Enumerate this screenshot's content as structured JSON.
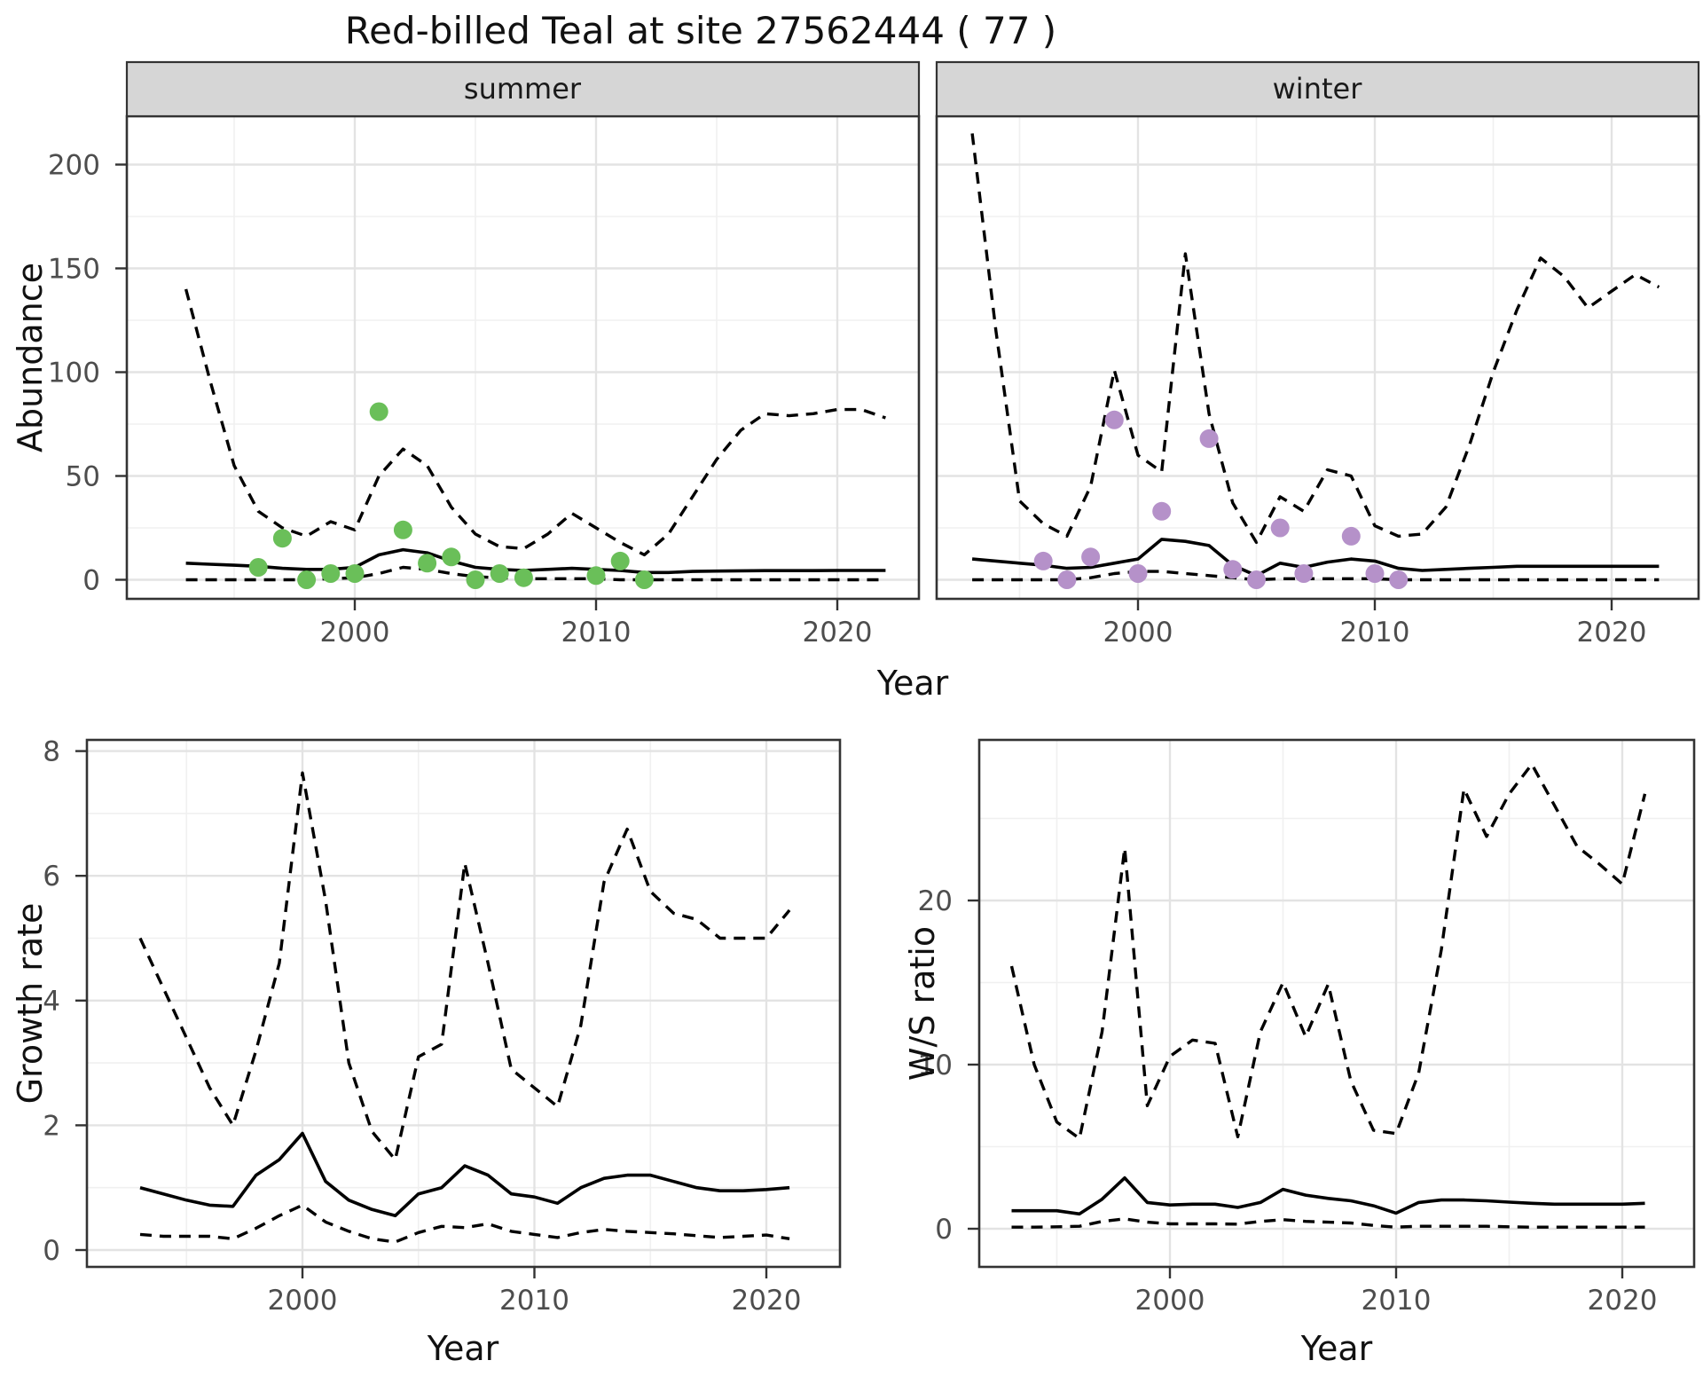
{
  "title": "Red-billed Teal at site 27562444 ( 77 )",
  "axis_titles": {
    "y_top": "Abundance",
    "x": "Year",
    "y_growth": "Growth rate",
    "y_ws": "W/S ratio"
  },
  "facet_labels": {
    "summer": "summer",
    "winter": "winter"
  },
  "colors": {
    "summer_points": "#6abf59",
    "winter_points": "#b591c9",
    "fit_line": "#000000",
    "interval_line": "#000000",
    "strip_bg": "#d6d6d6",
    "panel_border": "#333333",
    "grid_major": "#e3e3e3",
    "grid_minor": "#f0f0f0",
    "tick_text": "#4d4d4d"
  },
  "chart_data": [
    {
      "id": "abundance-summer",
      "type": "line",
      "facet": "summer",
      "xlabel": "Year",
      "ylabel": "Abundance",
      "xlim": [
        1990.6,
        2023.4
      ],
      "ylim": [
        -9,
        223
      ],
      "x_ticks": [
        2000,
        2010,
        2020
      ],
      "x_minor": [
        1995,
        2005,
        2015
      ],
      "y_ticks": [
        0,
        50,
        100,
        150,
        200
      ],
      "y_minor": [
        25,
        75,
        125,
        175
      ],
      "years": [
        1993,
        1994,
        1995,
        1996,
        1997,
        1998,
        1999,
        2000,
        2001,
        2002,
        2003,
        2004,
        2005,
        2006,
        2007,
        2008,
        2009,
        2010,
        2011,
        2012,
        2013,
        2014,
        2015,
        2016,
        2017,
        2018,
        2019,
        2020,
        2021,
        2022
      ],
      "series": [
        {
          "name": "median_fit",
          "style": "solid",
          "values": [
            8,
            7.5,
            7,
            6.5,
            5.5,
            5,
            5,
            6,
            12,
            14.5,
            13,
            9,
            6,
            5,
            4.5,
            5,
            5.5,
            5,
            4.5,
            3.5,
            3.5,
            4,
            4.2,
            4.3,
            4.4,
            4.4,
            4.4,
            4.5,
            4.5,
            4.5
          ]
        },
        {
          "name": "upper_interval",
          "style": "dashed",
          "values": [
            140,
            96,
            55,
            33,
            25,
            21,
            28,
            24,
            50,
            63,
            55,
            35,
            22,
            16,
            15,
            22,
            32,
            25,
            18,
            12,
            22,
            40,
            58,
            72,
            80,
            79,
            80,
            82,
            82,
            78
          ]
        },
        {
          "name": "lower_interval",
          "style": "dashed",
          "values": [
            0,
            0,
            0,
            0,
            0,
            0,
            0.5,
            1,
            3,
            6,
            5,
            3,
            1.5,
            1,
            0.5,
            0.5,
            0.5,
            0.5,
            0,
            0,
            0,
            0,
            0,
            0,
            0,
            0,
            0,
            0,
            0,
            0
          ]
        }
      ],
      "observed_points": {
        "name": "summer_counts",
        "color": "#6abf59",
        "data": [
          [
            1996,
            6
          ],
          [
            1997,
            20
          ],
          [
            1998,
            0
          ],
          [
            1999,
            3
          ],
          [
            2000,
            3
          ],
          [
            2001,
            81
          ],
          [
            2002,
            24
          ],
          [
            2003,
            8
          ],
          [
            2004,
            11
          ],
          [
            2005,
            0
          ],
          [
            2006,
            3
          ],
          [
            2007,
            1
          ],
          [
            2010,
            2
          ],
          [
            2011,
            9
          ],
          [
            2012,
            0
          ]
        ]
      }
    },
    {
      "id": "abundance-winter",
      "type": "line",
      "facet": "winter",
      "xlabel": "Year",
      "ylabel": "Abundance",
      "xlim": [
        1991.5,
        2023.8
      ],
      "ylim": [
        -9,
        223
      ],
      "x_ticks": [
        2000,
        2010,
        2020
      ],
      "x_minor": [
        1995,
        2005,
        2015
      ],
      "y_ticks": [
        0,
        50,
        100,
        150,
        200
      ],
      "y_minor": [
        25,
        75,
        125,
        175
      ],
      "years": [
        1993,
        1994,
        1995,
        1996,
        1997,
        1998,
        1999,
        2000,
        2001,
        2002,
        2003,
        2004,
        2005,
        2006,
        2007,
        2008,
        2009,
        2010,
        2011,
        2012,
        2013,
        2014,
        2015,
        2016,
        2017,
        2018,
        2019,
        2020,
        2021,
        2022
      ],
      "series": [
        {
          "name": "median_fit",
          "style": "solid",
          "values": [
            10,
            9,
            8,
            7,
            5.5,
            6,
            8,
            10,
            19.5,
            18.5,
            16.5,
            7,
            2,
            8,
            6,
            8.5,
            10,
            9,
            5.5,
            4.5,
            5,
            5.5,
            6,
            6.5,
            6.5,
            6.5,
            6.5,
            6.5,
            6.5,
            6.5
          ]
        },
        {
          "name": "upper_interval",
          "style": "dashed",
          "values": [
            215,
            120,
            38,
            27,
            21,
            45,
            101,
            60,
            52,
            157,
            80,
            37,
            18,
            40,
            33,
            53,
            50,
            26,
            21,
            22,
            35,
            65,
            100,
            130,
            155,
            146,
            131,
            139,
            147,
            141
          ]
        },
        {
          "name": "lower_interval",
          "style": "dashed",
          "values": [
            0,
            0,
            0,
            0,
            0,
            1,
            3,
            4,
            4,
            3,
            2,
            1,
            0,
            0.5,
            0.5,
            0.5,
            0.5,
            0.5,
            0,
            0,
            0,
            0,
            0,
            0,
            0,
            0,
            0,
            0,
            0,
            0
          ]
        }
      ],
      "observed_points": {
        "name": "winter_counts",
        "color": "#b591c9",
        "data": [
          [
            1996,
            9
          ],
          [
            1997,
            0
          ],
          [
            1998,
            11
          ],
          [
            1999,
            77
          ],
          [
            2000,
            3
          ],
          [
            2001,
            33
          ],
          [
            2003,
            68
          ],
          [
            2004,
            5
          ],
          [
            2005,
            0
          ],
          [
            2006,
            25
          ],
          [
            2007,
            3
          ],
          [
            2009,
            21
          ],
          [
            2010,
            3
          ],
          [
            2011,
            0
          ]
        ]
      }
    },
    {
      "id": "growth-rate",
      "type": "line",
      "facet": null,
      "xlabel": "Year",
      "ylabel": "Growth rate",
      "xlim": [
        1990.7,
        2023.1
      ],
      "ylim": [
        -0.27,
        8.18
      ],
      "x_ticks": [
        2000,
        2010,
        2020
      ],
      "x_minor": [
        1995,
        2005,
        2015
      ],
      "y_ticks": [
        0,
        2,
        4,
        6,
        8
      ],
      "y_minor": [
        1,
        3,
        5,
        7
      ],
      "years": [
        1993,
        1994,
        1995,
        1996,
        1997,
        1998,
        1999,
        2000,
        2001,
        2002,
        2003,
        2004,
        2005,
        2006,
        2007,
        2008,
        2009,
        2010,
        2011,
        2012,
        2013,
        2014,
        2015,
        2016,
        2017,
        2018,
        2019,
        2020,
        2021
      ],
      "series": [
        {
          "name": "median_fit",
          "style": "solid",
          "values": [
            1.0,
            0.9,
            0.8,
            0.72,
            0.7,
            1.2,
            1.45,
            1.87,
            1.1,
            0.8,
            0.65,
            0.55,
            0.9,
            1.0,
            1.35,
            1.2,
            0.9,
            0.85,
            0.75,
            1.0,
            1.15,
            1.2,
            1.2,
            1.1,
            1.0,
            0.95,
            0.95,
            0.97,
            1.0
          ]
        },
        {
          "name": "upper_interval",
          "style": "dashed",
          "values": [
            5.0,
            4.2,
            3.4,
            2.6,
            2.0,
            3.2,
            4.6,
            7.65,
            5.6,
            3.0,
            1.9,
            1.45,
            3.1,
            3.3,
            6.2,
            4.6,
            2.9,
            2.6,
            2.3,
            3.6,
            5.9,
            6.75,
            5.75,
            5.4,
            5.3,
            5.0,
            5.0,
            5.0,
            5.45
          ]
        },
        {
          "name": "lower_interval",
          "style": "dashed",
          "values": [
            0.25,
            0.22,
            0.22,
            0.22,
            0.18,
            0.35,
            0.55,
            0.72,
            0.45,
            0.3,
            0.18,
            0.13,
            0.28,
            0.38,
            0.36,
            0.42,
            0.3,
            0.25,
            0.2,
            0.28,
            0.33,
            0.3,
            0.28,
            0.26,
            0.23,
            0.2,
            0.22,
            0.24,
            0.18
          ]
        }
      ],
      "observed_points": null
    },
    {
      "id": "ws-ratio",
      "type": "line",
      "facet": null,
      "xlabel": "Year",
      "ylabel": "W/S ratio",
      "xlim": [
        1991.6,
        2023.0
      ],
      "ylim": [
        -2.3,
        29.7
      ],
      "x_ticks": [
        2000,
        2010,
        2020
      ],
      "x_minor": [
        1995,
        2005,
        2015
      ],
      "y_ticks": [
        0,
        10,
        20
      ],
      "y_minor": [
        5,
        15,
        25
      ],
      "years": [
        1993,
        1994,
        1995,
        1996,
        1997,
        1998,
        1999,
        2000,
        2001,
        2002,
        2003,
        2004,
        2005,
        2006,
        2007,
        2008,
        2009,
        2010,
        2011,
        2012,
        2013,
        2014,
        2015,
        2016,
        2017,
        2018,
        2019,
        2020,
        2021
      ],
      "series": [
        {
          "name": "median_fit",
          "style": "solid",
          "values": [
            1.1,
            1.1,
            1.1,
            0.9,
            1.8,
            3.1,
            1.6,
            1.45,
            1.5,
            1.5,
            1.3,
            1.6,
            2.4,
            2.05,
            1.85,
            1.7,
            1.4,
            0.95,
            1.6,
            1.75,
            1.75,
            1.7,
            1.62,
            1.55,
            1.5,
            1.5,
            1.5,
            1.5,
            1.55
          ]
        },
        {
          "name": "upper_interval",
          "style": "dashed",
          "values": [
            16,
            10,
            6.5,
            5.5,
            12,
            23.2,
            7.5,
            10.5,
            11.5,
            11.3,
            5.6,
            12,
            15,
            11.7,
            14.9,
            9,
            6,
            5.8,
            9.5,
            17,
            26.8,
            23.9,
            26.5,
            28.3,
            25.8,
            23.3,
            22.2,
            21,
            26.5
          ]
        },
        {
          "name": "lower_interval",
          "style": "dashed",
          "values": [
            0.1,
            0.1,
            0.12,
            0.15,
            0.45,
            0.6,
            0.4,
            0.3,
            0.3,
            0.3,
            0.28,
            0.45,
            0.55,
            0.45,
            0.4,
            0.35,
            0.2,
            0.1,
            0.15,
            0.15,
            0.15,
            0.15,
            0.12,
            0.1,
            0.1,
            0.1,
            0.1,
            0.1,
            0.1
          ]
        }
      ],
      "observed_points": null
    }
  ]
}
